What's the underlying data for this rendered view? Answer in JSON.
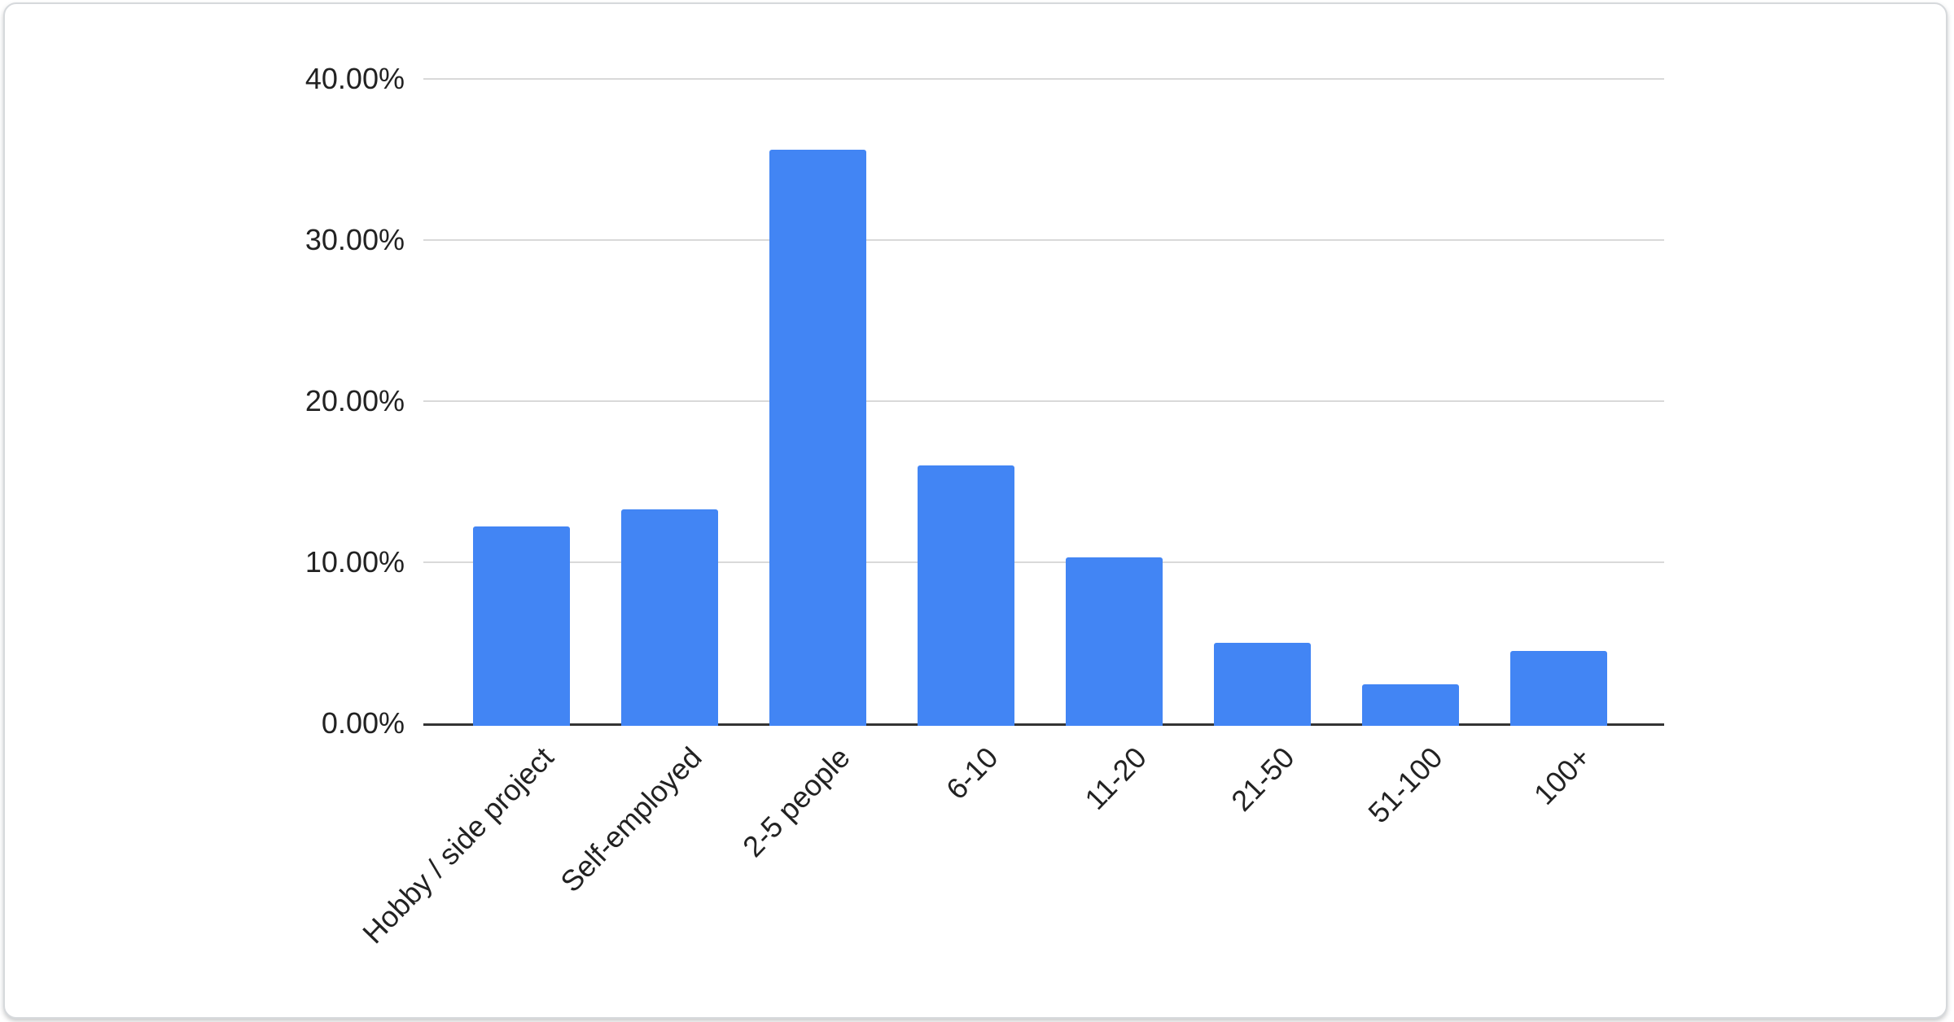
{
  "card": {
    "background": "#ffffff",
    "border_color": "#d6d9dc"
  },
  "chart_data": {
    "type": "bar",
    "title": "",
    "categories": [
      "Hobby / side project",
      "Self-employed",
      "2-5 people",
      "6-10",
      "11-20",
      "21-50",
      "51-100",
      "100+"
    ],
    "values": [
      12.2,
      13.3,
      35.6,
      16.0,
      10.3,
      5.0,
      2.4,
      4.5
    ],
    "xlabel": "",
    "ylabel": "",
    "y_axis": {
      "min": 0,
      "max": 40,
      "ticks": [
        {
          "value": 40,
          "label": "40.00%"
        },
        {
          "value": 30,
          "label": "30.00%"
        },
        {
          "value": 20,
          "label": "20.00%"
        },
        {
          "value": 10,
          "label": "10.00%"
        },
        {
          "value": 0,
          "label": "0.00%"
        }
      ]
    },
    "grid": true,
    "legend_position": "none",
    "colors": {
      "bar": "#4285f4",
      "gridline": "#d9d9d9",
      "axis_line": "#333333",
      "label_text": "#222222"
    }
  }
}
